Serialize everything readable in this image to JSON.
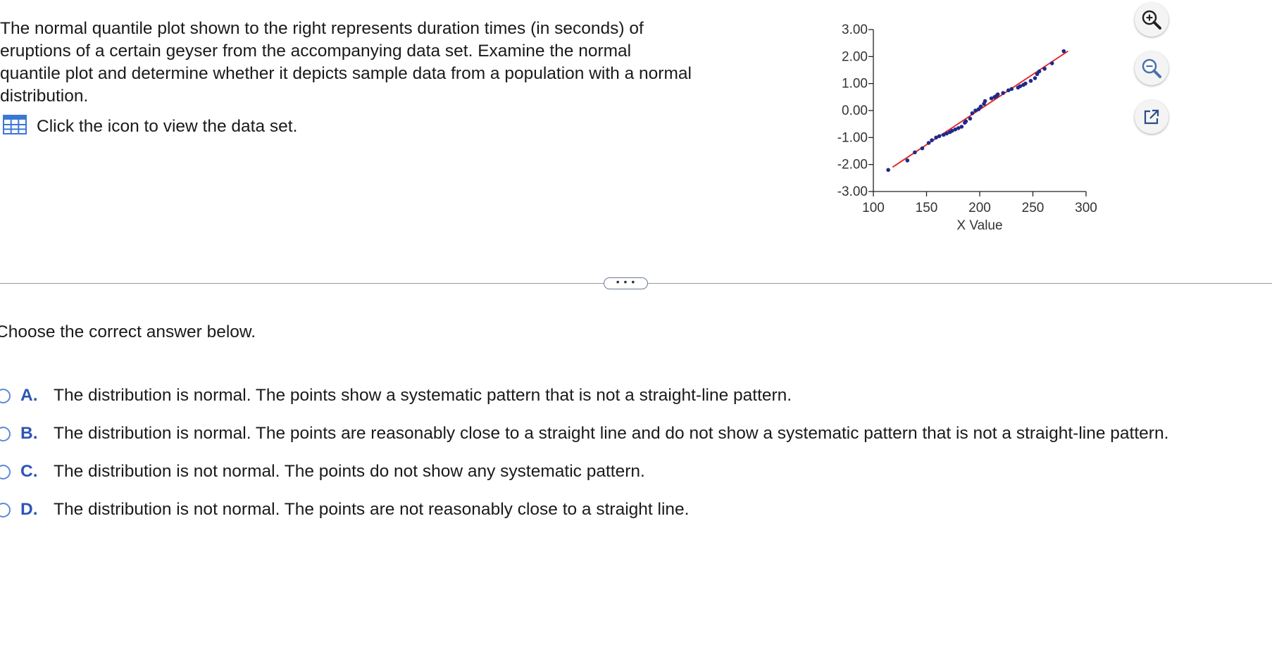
{
  "question": {
    "text": "The normal quantile plot shown to the right represents duration times (in seconds) of eruptions of a certain geyser from the accompanying data set. Examine the normal quantile plot and determine whether it depicts sample data from a population with a normal distribution.",
    "dataset_link": "Click the icon to view the data set.",
    "dataset_icon": "table-icon"
  },
  "tools": {
    "zoom_in_icon": "zoom-in-icon",
    "zoom_out_icon": "zoom-out-icon",
    "popout_icon": "external-link-icon"
  },
  "divider": {
    "more_label": "• • •"
  },
  "answer": {
    "prompt": "Choose the correct answer below.",
    "choices": [
      {
        "letter": "A.",
        "text": "The distribution is normal. The points show a systematic pattern that is not a straight-line pattern."
      },
      {
        "letter": "B.",
        "text": "The distribution is normal. The points are reasonably close to a straight line and do not show a systematic pattern that is not a straight-line pattern."
      },
      {
        "letter": "C.",
        "text": "The distribution is not normal. The points do not show any systematic pattern."
      },
      {
        "letter": "D.",
        "text": "The distribution is not normal. The points are not reasonably close to a straight line."
      }
    ]
  },
  "colors": {
    "accent": "#2f54b5",
    "point": "#1f2a8a",
    "fit_line": "#e02020",
    "radio": "#5b8ad6"
  },
  "chart_data": {
    "type": "scatter",
    "xlabel": "X Value",
    "ylabel": "",
    "xlim": [
      100,
      300
    ],
    "ylim": [
      -3,
      3
    ],
    "x_ticks": [
      100,
      150,
      200,
      250,
      300
    ],
    "x_tick_labels": [
      "100",
      "150",
      "200",
      "250",
      "300"
    ],
    "y_ticks": [
      3,
      2,
      1,
      0,
      -1,
      -2,
      -3
    ],
    "y_tick_labels": [
      "3.00",
      "2.00",
      "1.00",
      "0.00",
      "-1.00",
      "-2.00",
      "-3.00"
    ],
    "fit_line": {
      "x": [
        118,
        283
      ],
      "y": [
        -2.1,
        2.2
      ]
    },
    "points": {
      "x": [
        114,
        132,
        139,
        146,
        152,
        155,
        159,
        162,
        166,
        169,
        172,
        174,
        177,
        180,
        183,
        186,
        187,
        191,
        193,
        196,
        199,
        201,
        204,
        205,
        211,
        214,
        216,
        217,
        222,
        227,
        230,
        236,
        238,
        241,
        243,
        248,
        252,
        254,
        256,
        261,
        268,
        279
      ],
      "y": [
        -2.2,
        -1.85,
        -1.55,
        -1.4,
        -1.2,
        -1.1,
        -1.0,
        -0.95,
        -0.9,
        -0.85,
        -0.8,
        -0.75,
        -0.7,
        -0.65,
        -0.6,
        -0.45,
        -0.4,
        -0.3,
        -0.1,
        0.0,
        0.05,
        0.15,
        0.25,
        0.35,
        0.45,
        0.5,
        0.55,
        0.6,
        0.65,
        0.75,
        0.8,
        0.85,
        0.9,
        0.95,
        1.0,
        1.1,
        1.2,
        1.35,
        1.45,
        1.55,
        1.75,
        2.2
      ]
    }
  }
}
